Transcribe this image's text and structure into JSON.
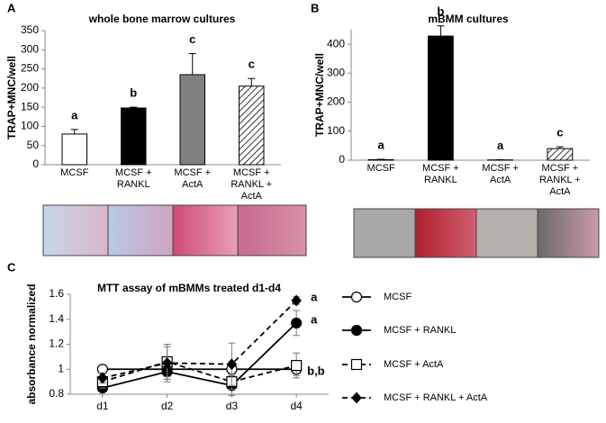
{
  "chart_data": [
    {
      "type": "bar",
      "panel": "A",
      "title": "whole bone marrow cultures",
      "y_label": "TRAP+MNC/well",
      "categories": [
        [
          "MCSF"
        ],
        [
          "MCSF +",
          "RANKL"
        ],
        [
          "MCSF +",
          "ActA"
        ],
        [
          "MCSF +",
          "RANKL +",
          "ActA"
        ]
      ],
      "values": [
        80,
        148,
        235,
        205
      ],
      "errors": [
        12,
        2,
        55,
        20
      ],
      "letters": [
        "a",
        "b",
        "c",
        "c"
      ],
      "fills": [
        "#ffffff",
        "#000000",
        "#808080",
        "hatch"
      ],
      "ylim": [
        0,
        350
      ],
      "yticks": [
        0,
        50,
        100,
        150,
        200,
        250,
        300,
        350
      ]
    },
    {
      "type": "bar",
      "panel": "B",
      "title": "mBMM cultures",
      "y_label": "TRAP+MNC/well",
      "categories": [
        [
          "MCSF"
        ],
        [
          "MCSF +",
          "RANKL"
        ],
        [
          "MCSF +",
          "ActA"
        ],
        [
          "MCSF +",
          "RANKL +",
          "ActA"
        ]
      ],
      "values": [
        2,
        428,
        1,
        40
      ],
      "errors": [
        1,
        35,
        1,
        6
      ],
      "letters": [
        "a",
        "b",
        "a",
        "c"
      ],
      "fills": [
        "#ffffff",
        "#000000",
        "#ffffff",
        "hatch"
      ],
      "ylim": [
        0,
        450
      ],
      "yticks": [
        0,
        100,
        200,
        300,
        400
      ]
    },
    {
      "type": "line",
      "panel": "C",
      "title": "MTT assay of mBMMs treated d1-d4",
      "y_label": "absorbance normalized",
      "categories": [
        "d1",
        "d2",
        "d3",
        "d4"
      ],
      "series": [
        {
          "name": "MCSF",
          "color": "#000000",
          "marker": "circle-open",
          "dash": false,
          "values": [
            1.0,
            1.0,
            1.0,
            1.0
          ],
          "errors": [
            0.03,
            0.08,
            0.05,
            0.05
          ]
        },
        {
          "name": "MCSF + RANKL",
          "color": "#000000",
          "marker": "circle-filled",
          "dash": false,
          "values": [
            0.85,
            0.98,
            0.87,
            1.37
          ],
          "errors": [
            0.05,
            0.06,
            0.08,
            0.1
          ]
        },
        {
          "name": "MCSF + ActA",
          "color": "#000000",
          "marker": "square-open",
          "dash": true,
          "values": [
            0.9,
            1.06,
            0.9,
            1.03
          ],
          "errors": [
            0.05,
            0.12,
            0.06,
            0.1
          ]
        },
        {
          "name": "MCSF + RANKL + ActA",
          "color": "#000000",
          "marker": "diamond-filled",
          "dash": true,
          "values": [
            0.93,
            1.05,
            1.04,
            1.55
          ],
          "errors": [
            0.04,
            0.15,
            0.17,
            0.03
          ]
        }
      ],
      "letters": [
        "a",
        "a",
        "b,b"
      ],
      "ylim": [
        0.8,
        1.6
      ],
      "yticks": [
        0.8,
        1,
        1.2,
        1.4,
        1.6
      ]
    }
  ]
}
